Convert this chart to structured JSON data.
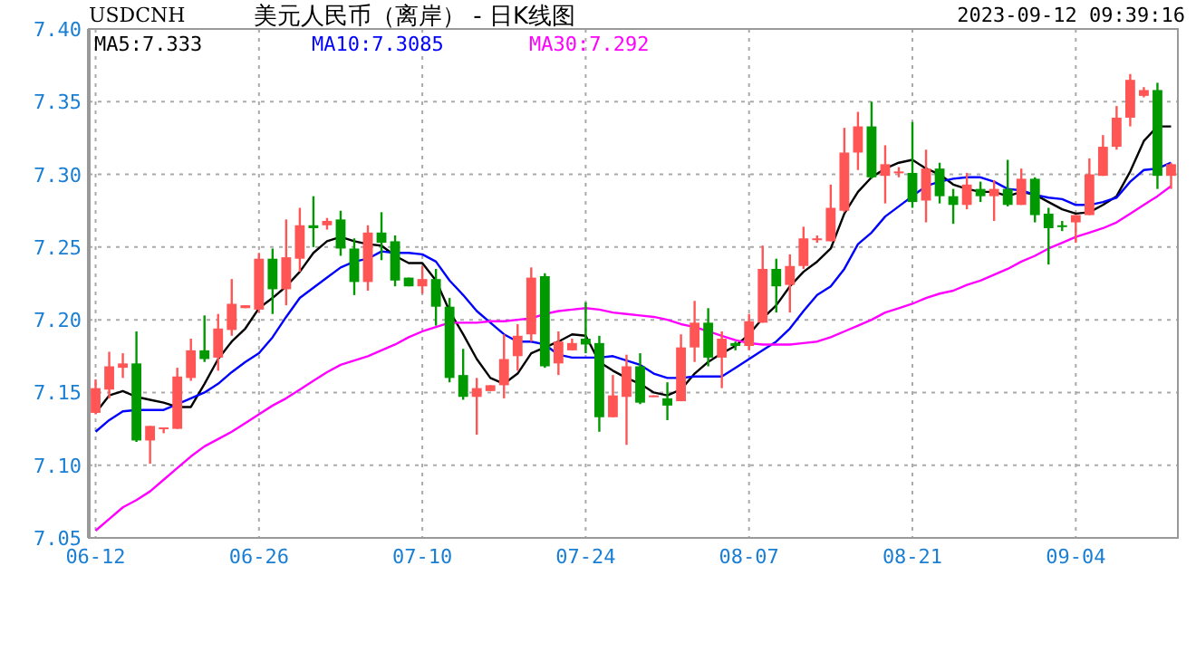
{
  "chart_data": {
    "type": "candlestick",
    "title": "美元人民币（离岸） - 日K线图",
    "subtitle": "USDCNH",
    "annotations": [
      "2023-09-12 09:39:16"
    ],
    "categories": [
      "06-12",
      null,
      null,
      null,
      null,
      null,
      null,
      null,
      null,
      null,
      null,
      null,
      "06-26",
      null,
      null,
      null,
      null,
      null,
      null,
      null,
      null,
      null,
      null,
      null,
      "07-10",
      null,
      null,
      null,
      null,
      null,
      null,
      null,
      null,
      null,
      null,
      null,
      "07-24",
      null,
      null,
      null,
      null,
      null,
      null,
      null,
      null,
      null,
      null,
      null,
      "08-07",
      null,
      null,
      null,
      null,
      null,
      null,
      null,
      null,
      null,
      null,
      null,
      "08-21",
      null,
      null,
      null,
      null,
      null,
      null,
      null,
      null,
      null,
      null,
      null,
      "09-04",
      null,
      null,
      null,
      null,
      null,
      null,
      null
    ],
    "ohlc": [
      [
        7.136,
        7.159,
        7.135,
        7.153
      ],
      [
        7.152,
        7.178,
        7.146,
        7.168
      ],
      [
        7.167,
        7.177,
        7.16,
        7.17
      ],
      [
        7.17,
        7.192,
        7.116,
        7.117
      ],
      [
        7.117,
        7.127,
        7.101,
        7.127
      ],
      [
        7.125,
        7.126,
        7.122,
        7.126
      ],
      [
        7.125,
        7.167,
        7.125,
        7.161
      ],
      [
        7.16,
        7.187,
        7.158,
        7.179
      ],
      [
        7.179,
        7.203,
        7.171,
        7.173
      ],
      [
        7.174,
        7.204,
        7.165,
        7.194
      ],
      [
        7.193,
        7.228,
        7.189,
        7.211
      ],
      [
        7.208,
        7.21,
        7.208,
        7.21
      ],
      [
        7.207,
        7.246,
        7.205,
        7.242
      ],
      [
        7.242,
        7.249,
        7.204,
        7.221
      ],
      [
        7.221,
        7.269,
        7.21,
        7.243
      ],
      [
        7.242,
        7.277,
        7.233,
        7.265
      ],
      [
        7.265,
        7.285,
        7.25,
        7.263
      ],
      [
        7.265,
        7.27,
        7.262,
        7.268
      ],
      [
        7.269,
        7.275,
        7.244,
        7.249
      ],
      [
        7.249,
        7.256,
        7.217,
        7.226
      ],
      [
        7.226,
        7.265,
        7.22,
        7.26
      ],
      [
        7.26,
        7.274,
        7.241,
        7.253
      ],
      [
        7.254,
        7.258,
        7.223,
        7.227
      ],
      [
        7.229,
        7.229,
        7.223,
        7.223
      ],
      [
        7.223,
        7.237,
        7.218,
        7.228
      ],
      [
        7.228,
        7.235,
        7.196,
        7.209
      ],
      [
        7.209,
        7.215,
        7.157,
        7.16
      ],
      [
        7.162,
        7.18,
        7.145,
        7.147
      ],
      [
        7.147,
        7.16,
        7.121,
        7.153
      ],
      [
        7.151,
        7.155,
        7.151,
        7.155
      ],
      [
        7.155,
        7.19,
        7.146,
        7.173
      ],
      [
        7.175,
        7.197,
        7.165,
        7.189
      ],
      [
        7.19,
        7.236,
        7.185,
        7.229
      ],
      [
        7.23,
        7.232,
        7.167,
        7.168
      ],
      [
        7.17,
        7.192,
        7.162,
        7.185
      ],
      [
        7.179,
        7.187,
        7.179,
        7.184
      ],
      [
        7.187,
        7.212,
        7.177,
        7.183
      ],
      [
        7.184,
        7.189,
        7.123,
        7.133
      ],
      [
        7.133,
        7.162,
        7.133,
        7.148
      ],
      [
        7.147,
        7.176,
        7.114,
        7.168
      ],
      [
        7.168,
        7.177,
        7.142,
        7.143
      ],
      [
        7.147,
        7.148,
        7.147,
        7.148
      ],
      [
        7.146,
        7.157,
        7.131,
        7.141
      ],
      [
        7.144,
        7.19,
        7.144,
        7.181
      ],
      [
        7.181,
        7.213,
        7.171,
        7.198
      ],
      [
        7.198,
        7.208,
        7.168,
        7.174
      ],
      [
        7.174,
        7.192,
        7.153,
        7.187
      ],
      [
        7.184,
        7.185,
        7.179,
        7.182
      ],
      [
        7.182,
        7.204,
        7.179,
        7.199
      ],
      [
        7.198,
        7.251,
        7.198,
        7.235
      ],
      [
        7.235,
        7.242,
        7.205,
        7.223
      ],
      [
        7.224,
        7.245,
        7.205,
        7.237
      ],
      [
        7.237,
        7.264,
        7.235,
        7.256
      ],
      [
        7.255,
        7.258,
        7.253,
        7.256
      ],
      [
        7.254,
        7.293,
        7.254,
        7.277
      ],
      [
        7.275,
        7.332,
        7.274,
        7.315
      ],
      [
        7.315,
        7.343,
        7.303,
        7.333
      ],
      [
        7.333,
        7.35,
        7.297,
        7.298
      ],
      [
        7.299,
        7.32,
        7.28,
        7.307
      ],
      [
        7.301,
        7.305,
        7.298,
        7.302
      ],
      [
        7.301,
        7.336,
        7.277,
        7.281
      ],
      [
        7.282,
        7.317,
        7.267,
        7.304
      ],
      [
        7.304,
        7.308,
        7.28,
        7.285
      ],
      [
        7.285,
        7.29,
        7.266,
        7.279
      ],
      [
        7.279,
        7.301,
        7.276,
        7.293
      ],
      [
        7.29,
        7.295,
        7.281,
        7.285
      ],
      [
        7.285,
        7.296,
        7.268,
        7.29
      ],
      [
        7.29,
        7.31,
        7.278,
        7.279
      ],
      [
        7.279,
        7.304,
        7.279,
        7.297
      ],
      [
        7.297,
        7.298,
        7.267,
        7.272
      ],
      [
        7.273,
        7.277,
        7.238,
        7.263
      ],
      [
        7.265,
        7.268,
        7.261,
        7.264
      ],
      [
        7.267,
        7.272,
        7.253,
        7.272
      ],
      [
        7.272,
        7.311,
        7.272,
        7.3
      ],
      [
        7.299,
        7.327,
        7.299,
        7.319
      ],
      [
        7.319,
        7.347,
        7.317,
        7.339
      ],
      [
        7.339,
        7.369,
        7.333,
        7.365
      ],
      [
        7.354,
        7.36,
        7.353,
        7.358
      ],
      [
        7.358,
        7.363,
        7.29,
        7.299
      ],
      [
        7.299,
        7.308,
        7.29,
        7.307
      ]
    ],
    "colors": [
      "#ff5555",
      "#ff5555",
      "#ff5555",
      "#009900",
      "#ff5555",
      "#ff5555",
      "#ff5555",
      "#ff5555",
      "#009900",
      "#ff5555",
      "#ff5555",
      "#ff5555",
      "#ff5555",
      "#009900",
      "#ff5555",
      "#ff5555",
      "#009900",
      "#ff5555",
      "#009900",
      "#009900",
      "#ff5555",
      "#009900",
      "#009900",
      "#009900",
      "#ff5555",
      "#009900",
      "#009900",
      "#009900",
      "#ff5555",
      "#ff5555",
      "#ff5555",
      "#ff5555",
      "#ff5555",
      "#009900",
      "#ff5555",
      "#ff5555",
      "#009900",
      "#009900",
      "#ff5555",
      "#ff5555",
      "#009900",
      "#ff5555",
      "#009900",
      "#ff5555",
      "#ff5555",
      "#009900",
      "#ff5555",
      "#009900",
      "#ff5555",
      "#ff5555",
      "#009900",
      "#ff5555",
      "#ff5555",
      "#ff5555",
      "#ff5555",
      "#ff5555",
      "#ff5555",
      "#009900",
      "#ff5555",
      "#ff5555",
      "#009900",
      "#ff5555",
      "#009900",
      "#009900",
      "#ff5555",
      "#009900",
      "#ff5555",
      "#009900",
      "#ff5555",
      "#009900",
      "#009900",
      "#009900",
      "#ff5555",
      "#ff5555",
      "#ff5555",
      "#ff5555",
      "#ff5555",
      "#ff5555",
      "#009900",
      "#ff5555"
    ],
    "series": [
      {
        "name": "MA5:7.333",
        "type": "line",
        "color": "#000000",
        "values": [
          7.136,
          7.148,
          7.151,
          7.147,
          7.145,
          7.143,
          7.14,
          7.14,
          7.156,
          7.173,
          7.185,
          7.194,
          7.208,
          7.215,
          7.223,
          7.233,
          7.246,
          7.254,
          7.257,
          7.254,
          7.252,
          7.251,
          7.244,
          7.239,
          7.239,
          7.227,
          7.206,
          7.19,
          7.173,
          7.16,
          7.156,
          7.163,
          7.177,
          7.181,
          7.185,
          7.19,
          7.189,
          7.171,
          7.165,
          7.16,
          7.156,
          7.15,
          7.148,
          7.152,
          7.163,
          7.171,
          7.177,
          7.182,
          7.19,
          7.201,
          7.21,
          7.223,
          7.233,
          7.24,
          7.249,
          7.273,
          7.288,
          7.298,
          7.304,
          7.308,
          7.31,
          7.304,
          7.3,
          7.293,
          7.29,
          7.288,
          7.288,
          7.285,
          7.288,
          7.286,
          7.281,
          7.276,
          7.273,
          7.274,
          7.279,
          7.285,
          7.302,
          7.323,
          7.333,
          7.333
        ]
      },
      {
        "name": "MA10:7.3085",
        "type": "line",
        "color": "#0000ff",
        "values": [
          7.123,
          7.131,
          7.137,
          7.138,
          7.138,
          7.138,
          7.142,
          7.146,
          7.15,
          7.156,
          7.164,
          7.171,
          7.177,
          7.188,
          7.202,
          7.215,
          7.222,
          7.229,
          7.236,
          7.24,
          7.242,
          7.247,
          7.246,
          7.246,
          7.245,
          7.24,
          7.227,
          7.217,
          7.206,
          7.198,
          7.19,
          7.185,
          7.185,
          7.183,
          7.176,
          7.174,
          7.174,
          7.174,
          7.175,
          7.172,
          7.169,
          7.163,
          7.16,
          7.16,
          7.161,
          7.161,
          7.161,
          7.167,
          7.173,
          7.179,
          7.185,
          7.194,
          7.206,
          7.217,
          7.223,
          7.235,
          7.252,
          7.26,
          7.271,
          7.278,
          7.285,
          7.292,
          7.295,
          7.297,
          7.298,
          7.298,
          7.295,
          7.29,
          7.289,
          7.286,
          7.284,
          7.283,
          7.279,
          7.279,
          7.281,
          7.284,
          7.295,
          7.303,
          7.304,
          7.308
        ]
      },
      {
        "name": "MA30:7.292",
        "type": "line",
        "color": "#ff00ff",
        "values": [
          7.055,
          7.063,
          7.071,
          7.076,
          7.082,
          7.09,
          7.098,
          7.106,
          7.113,
          7.118,
          7.123,
          7.129,
          7.135,
          7.141,
          7.146,
          7.152,
          7.158,
          7.164,
          7.169,
          7.172,
          7.175,
          7.179,
          7.183,
          7.188,
          7.192,
          7.195,
          7.198,
          7.198,
          7.198,
          7.199,
          7.199,
          7.2,
          7.201,
          7.204,
          7.206,
          7.207,
          7.208,
          7.207,
          7.205,
          7.204,
          7.203,
          7.202,
          7.2,
          7.197,
          7.195,
          7.192,
          7.189,
          7.186,
          7.184,
          7.183,
          7.183,
          7.183,
          7.184,
          7.185,
          7.188,
          7.192,
          7.196,
          7.2,
          7.205,
          7.208,
          7.211,
          7.215,
          7.218,
          7.22,
          7.224,
          7.227,
          7.231,
          7.235,
          7.24,
          7.244,
          7.249,
          7.253,
          7.257,
          7.26,
          7.263,
          7.267,
          7.273,
          7.279,
          7.285,
          7.292
        ]
      }
    ],
    "ylim": [
      7.05,
      7.4
    ],
    "yticks": [
      7.05,
      {
        "value": 7.1,
        "label": "7.10"
      },
      7.15,
      {
        "value": 7.2,
        "label": "7.20"
      },
      7.25,
      {
        "value": 7.3,
        "label": "7.30"
      },
      7.35,
      {
        "value": 7.4,
        "label": "7.40"
      }
    ],
    "grid": true,
    "legend": "top left"
  }
}
